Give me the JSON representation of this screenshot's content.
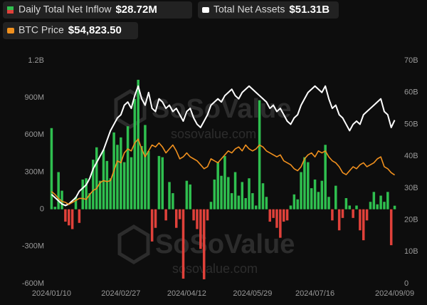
{
  "chart_data": {
    "type": "bar",
    "categories": [
      "2024/01/10",
      null,
      null,
      null,
      null,
      null,
      null,
      null,
      null,
      null,
      null,
      null,
      null,
      null,
      null,
      null,
      null,
      null,
      null,
      null,
      "2024/02/27",
      null,
      null,
      null,
      null,
      null,
      null,
      null,
      null,
      null,
      null,
      null,
      null,
      null,
      null,
      null,
      null,
      null,
      null,
      "2024/04/12",
      null,
      null,
      null,
      null,
      null,
      null,
      null,
      null,
      null,
      null,
      null,
      null,
      null,
      null,
      null,
      null,
      null,
      null,
      "2024/05/29",
      null,
      null,
      null,
      null,
      null,
      null,
      null,
      null,
      null,
      null,
      null,
      null,
      null,
      null,
      null,
      null,
      null,
      "2024/07/16",
      null,
      null,
      null,
      null,
      null,
      null,
      null,
      null,
      null,
      null,
      null,
      null,
      null,
      null,
      null,
      null,
      null,
      null,
      null,
      null,
      null,
      null,
      "2024/09/09"
    ],
    "series": [
      {
        "name": "Daily Total Net Inflow",
        "current_label": "$28.72M",
        "type": "bar",
        "axis": "y",
        "color": "#2fbf4f",
        "negative_color": "#e0413a",
        "values": [
          655000000,
          20000000,
          300000000,
          150000000,
          -100000000,
          -130000000,
          -160000000,
          100000000,
          -110000000,
          240000000,
          250000000,
          130000000,
          400000000,
          500000000,
          230000000,
          480000000,
          390000000,
          250000000,
          620000000,
          520000000,
          580000000,
          380000000,
          670000000,
          420000000,
          890000000,
          1045000000,
          510000000,
          680000000,
          470000000,
          -260000000,
          -150000000,
          430000000,
          420000000,
          -90000000,
          220000000,
          130000000,
          -150000000,
          -80000000,
          -560000000,
          230000000,
          200000000,
          -90000000,
          -160000000,
          -320000000,
          -565000000,
          -90000000,
          60000000,
          240000000,
          380000000,
          270000000,
          430000000,
          260000000,
          130000000,
          300000000,
          110000000,
          220000000,
          90000000,
          250000000,
          130000000,
          30000000,
          880000000,
          210000000,
          100000000,
          -100000000,
          -70000000,
          -150000000,
          -230000000,
          -100000000,
          -90000000,
          30000000,
          120000000,
          80000000,
          300000000,
          420000000,
          380000000,
          170000000,
          240000000,
          140000000,
          230000000,
          520000000,
          100000000,
          -90000000,
          190000000,
          -170000000,
          -70000000,
          90000000,
          30000000,
          -70000000,
          30000000,
          -170000000,
          -250000000,
          -90000000,
          60000000,
          140000000,
          40000000,
          110000000,
          60000000,
          140000000,
          -290000000,
          28720000
        ]
      },
      {
        "name": "Total Net Assets",
        "current_label": "$51.31B",
        "type": "line",
        "axis": "y2",
        "color": "#ffffff",
        "values": [
          28000000000,
          27000000000,
          26000000000,
          25000000000,
          24500000000,
          25000000000,
          26000000000,
          27000000000,
          29000000000,
          30000000000,
          31000000000,
          33000000000,
          36000000000,
          38000000000,
          40000000000,
          42000000000,
          45000000000,
          48000000000,
          50000000000,
          52000000000,
          53000000000,
          56000000000,
          57000000000,
          55000000000,
          59000000000,
          62000000000,
          58000000000,
          56000000000,
          60000000000,
          55000000000,
          54000000000,
          58000000000,
          57000000000,
          55000000000,
          56000000000,
          54000000000,
          55000000000,
          53000000000,
          51000000000,
          54000000000,
          55000000000,
          52000000000,
          50000000000,
          49000000000,
          51000000000,
          53000000000,
          56000000000,
          57000000000,
          58000000000,
          57000000000,
          59000000000,
          60000000000,
          61000000000,
          59000000000,
          58000000000,
          60000000000,
          61000000000,
          62000000000,
          61000000000,
          60000000000,
          59000000000,
          58000000000,
          57000000000,
          55000000000,
          56000000000,
          54000000000,
          55000000000,
          53000000000,
          51000000000,
          50000000000,
          52000000000,
          53000000000,
          56000000000,
          58000000000,
          60000000000,
          61000000000,
          62000000000,
          61000000000,
          60000000000,
          62000000000,
          58000000000,
          55000000000,
          56000000000,
          53000000000,
          52000000000,
          50000000000,
          48000000000,
          50000000000,
          51000000000,
          50000000000,
          53000000000,
          54000000000,
          55000000000,
          56000000000,
          57000000000,
          58000000000,
          54000000000,
          53000000000,
          49000000000,
          51310000000
        ]
      },
      {
        "name": "BTC Price",
        "current_label": "$54,823.50",
        "type": "line",
        "axis": "y3",
        "color": "#f0901e",
        "values": [
          46500,
          45000,
          43000,
          41500,
          41000,
          40000,
          41000,
          42000,
          43000,
          43000,
          42500,
          45000,
          47000,
          48000,
          51000,
          52000,
          51500,
          52000,
          57000,
          62000,
          61000,
          66000,
          68000,
          67000,
          71000,
          73000,
          68000,
          64000,
          67000,
          70000,
          69000,
          71000,
          69000,
          66000,
          68000,
          70000,
          67000,
          63000,
          64000,
          66000,
          64000,
          63000,
          62000,
          60000,
          58000,
          59000,
          63000,
          62000,
          61000,
          63000,
          65000,
          67000,
          66000,
          68000,
          69000,
          67000,
          70000,
          68000,
          67000,
          68000,
          70000,
          69000,
          67000,
          66000,
          65000,
          64000,
          65000,
          62000,
          61000,
          60000,
          58000,
          57000,
          59000,
          63000,
          65000,
          66000,
          64000,
          67000,
          66000,
          67000,
          64000,
          62000,
          61000,
          59000,
          56000,
          55000,
          57000,
          59000,
          58000,
          60000,
          61000,
          59000,
          60000,
          61000,
          63000,
          64000,
          59000,
          58000,
          56000,
          54823.5
        ]
      }
    ],
    "ylim": [
      -600000000,
      1200000000
    ],
    "yticks": [
      {
        "value": -600000000,
        "label": "-600M"
      },
      {
        "value": -300000000,
        "label": "-300M"
      },
      0,
      {
        "value": 300000000,
        "label": "300M"
      },
      {
        "value": 600000000,
        "label": "600M"
      },
      {
        "value": 900000000,
        "label": "900M"
      },
      {
        "value": 1200000000,
        "label": "1.2B"
      }
    ],
    "y2lim": [
      0,
      70000000000
    ],
    "y2ticks": [
      0,
      {
        "value": 10000000000,
        "label": "10B"
      },
      {
        "value": 20000000000,
        "label": "20B"
      },
      {
        "value": 30000000000,
        "label": "30B"
      },
      {
        "value": 40000000000,
        "label": "40B"
      },
      {
        "value": 50000000000,
        "label": "50B"
      },
      {
        "value": 60000000000,
        "label": "60B"
      },
      {
        "value": 70000000000,
        "label": "70B"
      }
    ],
    "y3lim": [
      0,
      112600
    ],
    "grid": false,
    "watermarks": [
      {
        "brand": "SoSoValue",
        "site": "sosovalue.com"
      },
      {
        "brand": "SoSoValue",
        "site": "sosovalue.com"
      }
    ]
  }
}
